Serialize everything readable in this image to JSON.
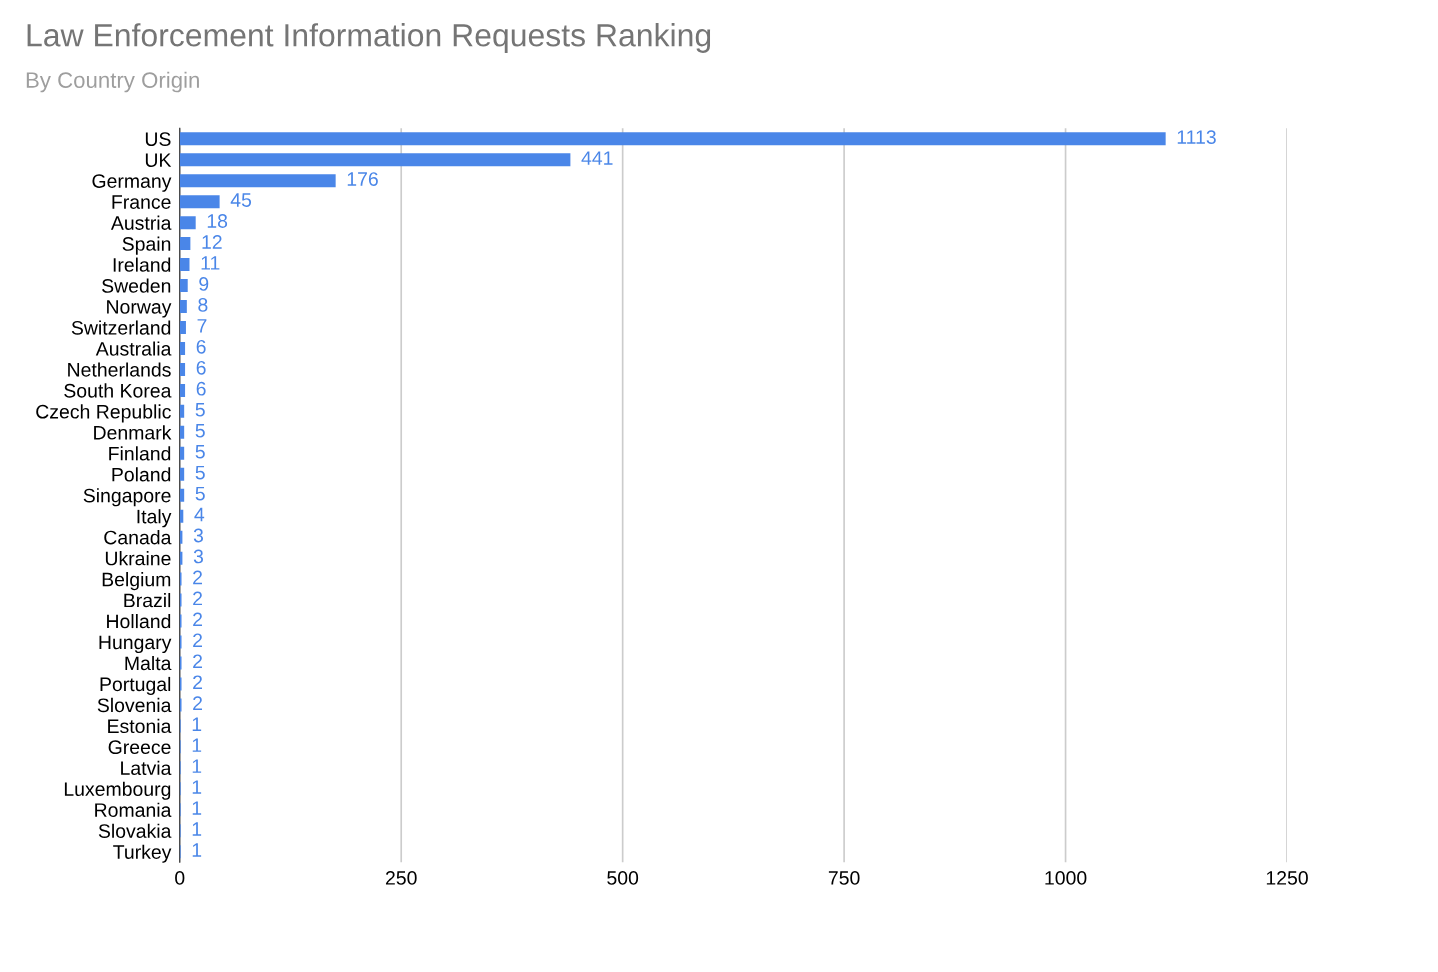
{
  "chart_data": {
    "type": "bar",
    "orientation": "horizontal",
    "title": "Law Enforcement Information Requests Ranking",
    "subtitle": "By Country Origin",
    "categories": [
      "US",
      "UK",
      "Germany",
      "France",
      "Austria",
      "Spain",
      "Ireland",
      "Sweden",
      "Norway",
      "Switzerland",
      "Australia",
      "Netherlands",
      "South Korea",
      "Czech Republic",
      "Denmark",
      "Finland",
      "Poland",
      "Singapore",
      "Italy",
      "Canada",
      "Ukraine",
      "Belgium",
      "Brazil",
      "Holland",
      "Hungary",
      "Malta",
      "Portugal",
      "Slovenia",
      "Estonia",
      "Greece",
      "Latvia",
      "Luxembourg",
      "Romania",
      "Slovakia",
      "Turkey"
    ],
    "values": [
      1113,
      441,
      176,
      45,
      18,
      12,
      11,
      9,
      8,
      7,
      6,
      6,
      6,
      5,
      5,
      5,
      5,
      5,
      4,
      3,
      3,
      2,
      2,
      2,
      2,
      2,
      2,
      2,
      1,
      1,
      1,
      1,
      1,
      1,
      1
    ],
    "color": "#4a86e8",
    "data_labels": true,
    "grid": "x",
    "xlim": [
      0,
      1250
    ],
    "xticks": [
      0,
      250,
      500,
      750,
      1000,
      1250
    ]
  }
}
